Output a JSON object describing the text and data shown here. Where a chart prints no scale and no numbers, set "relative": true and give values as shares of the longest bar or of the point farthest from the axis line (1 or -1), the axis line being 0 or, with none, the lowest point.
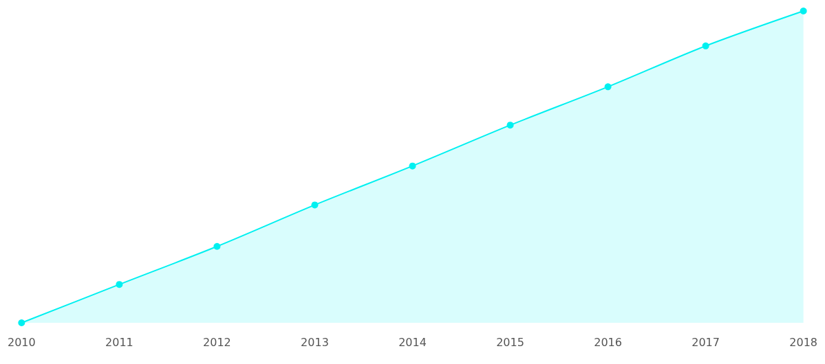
{
  "chart_data": {
    "type": "area",
    "relative": true,
    "categories": [
      "2010",
      "2011",
      "2012",
      "2013",
      "2014",
      "2015",
      "2016",
      "2017",
      "2018"
    ],
    "series": [
      {
        "color": "#00f0f0",
        "values": [
          0,
          0.123,
          0.245,
          0.378,
          0.503,
          0.634,
          0.757,
          0.888,
          1
        ]
      }
    ],
    "marker": "circle",
    "grid": false
  }
}
